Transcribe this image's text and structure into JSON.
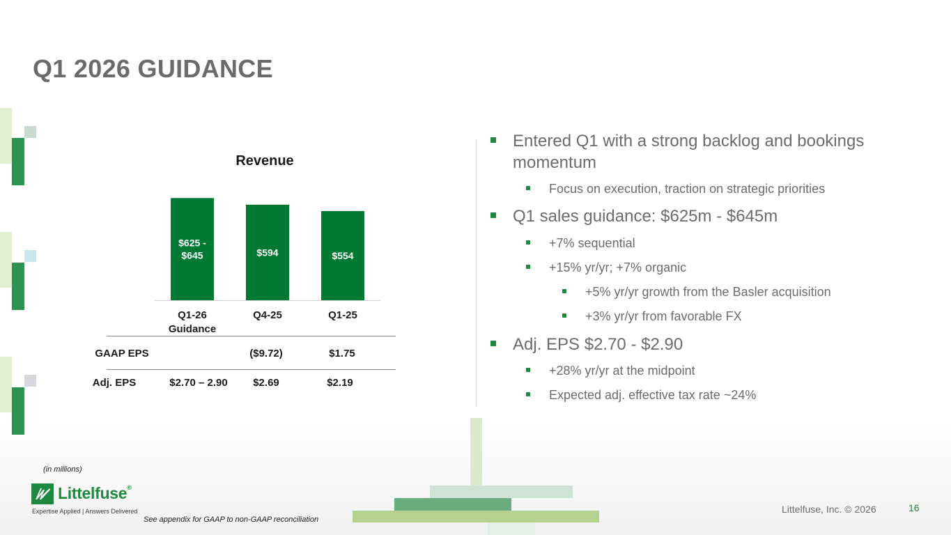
{
  "slide": {
    "title": "Q1 2026 GUIDANCE",
    "page_number": "16",
    "copyright": "Littelfuse, Inc. © 2026",
    "note_units": "(in millions)",
    "note_appendix": "See appendix for GAAP to non-GAAP reconciliation"
  },
  "logo": {
    "word": "Littelfuse",
    "registered": "®",
    "tagline": "Expertise Applied | Answers Delivered"
  },
  "chart_data": {
    "type": "bar",
    "title": "Revenue",
    "categories": [
      "Q1-26 Guidance",
      "Q4-25",
      "Q1-25"
    ],
    "category_lines": [
      [
        "Q1-26",
        "Guidance"
      ],
      [
        "Q4-25"
      ],
      [
        "Q1-25"
      ]
    ],
    "values": [
      635,
      594,
      554
    ],
    "value_ranges": [
      [
        625,
        645
      ],
      null,
      null
    ],
    "data_labels": [
      [
        "$625 -",
        "$645"
      ],
      [
        "$594"
      ],
      [
        "$554"
      ]
    ],
    "bar_color": "#007a33"
  },
  "eps_table": {
    "rows": [
      {
        "label": "GAAP EPS",
        "values": [
          "",
          "($9.72)",
          "$1.75"
        ]
      },
      {
        "label": "Adj. EPS",
        "values": [
          "$2.70 – 2.90",
          "$2.69",
          "$2.19"
        ]
      }
    ]
  },
  "bullets": [
    {
      "level": 1,
      "lines": [
        "Entered Q1 with a strong backlog and bookings",
        "momentum"
      ]
    },
    {
      "level": 2,
      "lines": [
        "Focus on execution, traction on strategic priorities"
      ]
    },
    {
      "level": 1,
      "lines": [
        "Q1 sales guidance: $625m - $645m"
      ]
    },
    {
      "level": 2,
      "lines": [
        "+7% sequential"
      ]
    },
    {
      "level": 2,
      "lines": [
        "+15% yr/yr; +7% organic"
      ]
    },
    {
      "level": 3,
      "lines": [
        "+5% yr/yr growth from the Basler acquisition"
      ]
    },
    {
      "level": 3,
      "lines": [
        "+3% yr/yr from favorable FX"
      ]
    },
    {
      "level": 1,
      "lines": [
        "Adj. EPS $2.70 - $2.90"
      ]
    },
    {
      "level": 2,
      "lines": [
        "+28% yr/yr at the midpoint"
      ]
    },
    {
      "level": 2,
      "lines": [
        "Expected adj. effective tax rate ~24%"
      ]
    }
  ],
  "colors": {
    "accent_green": "#1e8a3f",
    "bar_green": "#007a33",
    "title_gray": "#6b6b6b"
  }
}
